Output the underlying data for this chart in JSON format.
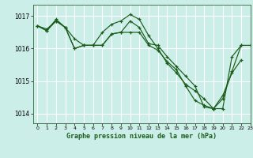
{
  "title": "Graphe pression niveau de la mer (hPa)",
  "bg_color": "#cceee8",
  "grid_color": "#ffffff",
  "line_color": "#1a5c1a",
  "xlim": [
    -0.5,
    23
  ],
  "ylim": [
    1013.7,
    1017.35
  ],
  "yticks": [
    1014,
    1015,
    1016,
    1017
  ],
  "ytick_labels": [
    "1014",
    "1015",
    "1016",
    "1017"
  ],
  "xticks": [
    0,
    1,
    2,
    3,
    4,
    5,
    6,
    7,
    8,
    9,
    10,
    11,
    12,
    13,
    14,
    15,
    16,
    17,
    18,
    19,
    20,
    21,
    22,
    23
  ],
  "series": [
    [
      1016.7,
      1016.6,
      1016.85,
      1016.65,
      1016.0,
      1016.1,
      1016.1,
      1016.1,
      1016.45,
      1016.5,
      1016.85,
      1016.65,
      1016.15,
      1016.1,
      1015.75,
      1015.45,
      1015.15,
      1014.85,
      1014.2,
      1014.15,
      1014.15,
      1015.75,
      1016.1,
      1016.1
    ],
    [
      1016.7,
      1016.55,
      1016.9,
      1016.65,
      1016.3,
      1016.1,
      1016.1,
      1016.5,
      1016.75,
      1016.85,
      1017.05,
      1016.9,
      1016.4,
      1016.0,
      1015.55,
      1015.25,
      1014.9,
      1014.7,
      1014.45,
      1014.15,
      1014.55,
      1015.25,
      1015.65,
      null
    ],
    [
      1016.7,
      1016.55,
      1016.85,
      1016.65,
      1016.0,
      1016.1,
      1016.1,
      1016.1,
      1016.45,
      1016.5,
      1016.5,
      1016.5,
      1016.1,
      1015.95,
      1015.6,
      1015.35,
      1014.85,
      1014.4,
      1014.25,
      1014.15,
      1014.45,
      1015.3,
      1016.1,
      null
    ]
  ]
}
